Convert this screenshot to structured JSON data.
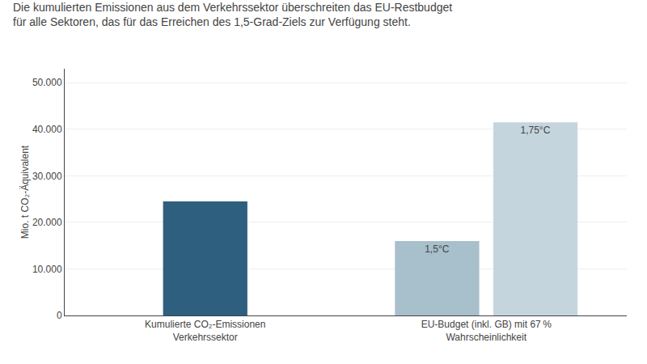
{
  "chart_data": {
    "type": "bar",
    "title": "Die kumulierten Emissionen aus dem Verkehrssektor überschreiten das EU-Restbudget",
    "subtitle": "für alle Sektoren, das für das Erreichen des 1,5-Grad-Ziels zur Verfügung steht.",
    "ylabel": "Mio. t CO₂-Äquivalent",
    "categories": [
      "Kumulierte CO₂-Emissionen\nVerkehrssektor",
      "EU-Budget (inkl. GB) mit 67 %\nWahrscheinlichkeit"
    ],
    "series": [
      {
        "color": "#2e5f7e",
        "values": [
          24500,
          null
        ]
      },
      {
        "name": "1,5°C",
        "color": "#a8bfcc",
        "values": [
          null,
          16000
        ]
      },
      {
        "name": "1,75°C",
        "color": "#c5d5de",
        "values": [
          null,
          41500
        ]
      }
    ],
    "ylim": [
      0,
      53000
    ],
    "yticks": [
      0,
      {
        "value": 10000,
        "label": "10.000"
      },
      {
        "value": 20000,
        "label": "20.000"
      },
      {
        "value": 30000,
        "label": "30.000"
      },
      {
        "value": 40000,
        "label": "40.000"
      },
      {
        "value": 50000,
        "label": "50.000"
      }
    ],
    "grid": true
  }
}
